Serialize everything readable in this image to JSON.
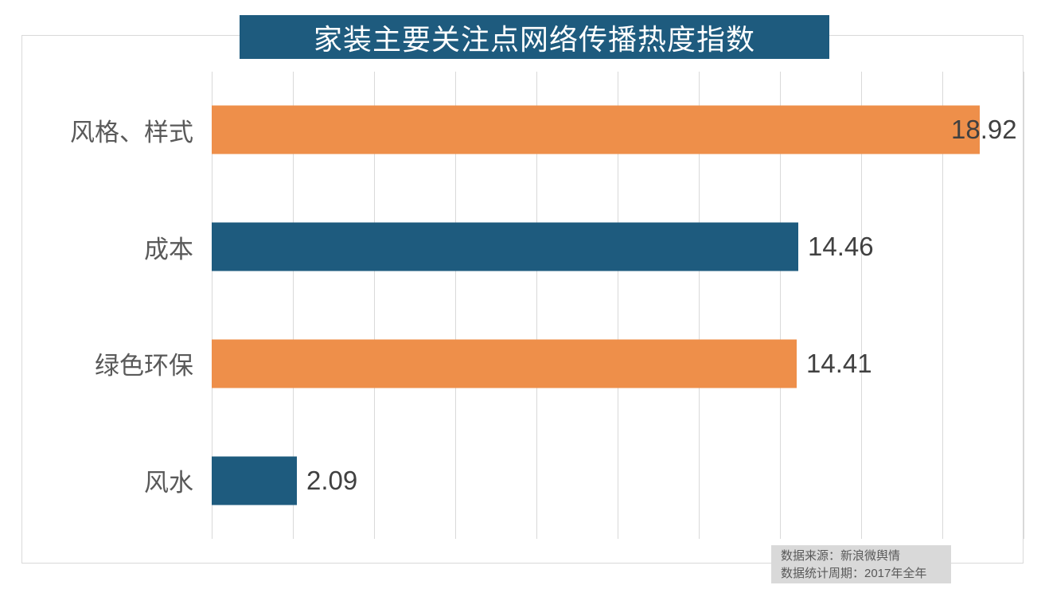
{
  "chart_data": {
    "type": "bar",
    "orientation": "horizontal",
    "title": "家装主要关注点网络传播热度指数",
    "categories": [
      "风格、样式",
      "成本",
      "绿色环保",
      "风水"
    ],
    "values": [
      18.92,
      14.46,
      14.41,
      2.09
    ],
    "value_labels": [
      "18.92",
      "14.46",
      "14.41",
      "2.09"
    ],
    "bar_colors": [
      "#EE8F4A",
      "#1E5B7E",
      "#EE8F4A",
      "#1E5B7E"
    ],
    "xlim": [
      0,
      20
    ],
    "gridline_interval": 2,
    "grid": "vertical gridlines only, no axis tick labels",
    "legend": "none"
  },
  "title_bar": {
    "bg_color": "#1E5B7E",
    "text_color": "#FFFFFF"
  },
  "source_note": {
    "line1": "数据来源：新浪微舆情",
    "line2": "数据统计周期：2017年全年",
    "bg_color": "#D9D9D9",
    "text_color": "#595959"
  },
  "colors": {
    "frame_border": "#D9D9D9",
    "gridline": "#D9D9D9",
    "category_label": "#595959",
    "value_label": "#404040"
  }
}
